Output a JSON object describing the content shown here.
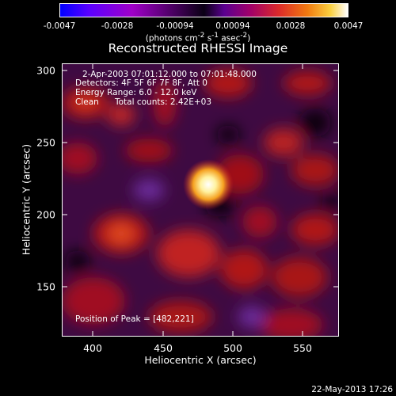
{
  "colorbar": {
    "ticks": [
      "-0.0047",
      "-0.0028",
      "-0.00094",
      "0.00094",
      "0.0028",
      "0.0047"
    ],
    "units_prefix": "(photons cm",
    "units_sup1": "-2",
    "units_mid": " s",
    "units_sup2": "-1",
    "units_mid2": " asec",
    "units_sup3": "-2",
    "units_suffix": ")"
  },
  "title": "Reconstructed RHESSI Image",
  "info": {
    "time": "2-Apr-2003 07:01:12.000 to 07:01:48.000",
    "detectors": "Detectors: 4F 5F 6F 7F 8F, Att 0",
    "energy": "Energy Range: 6.0 - 12.0 keV",
    "clean": "Clean",
    "counts": "Total counts: 2.42E+03",
    "peak": "Position of Peak = [482,221]"
  },
  "axes": {
    "xlabel": "Heliocentric X (arcsec)",
    "ylabel": "Heliocentric Y (arcsec)",
    "xticks": [
      "400",
      "450",
      "500",
      "550"
    ],
    "yticks": [
      "300",
      "250",
      "200",
      "150"
    ]
  },
  "timestamp": "22-May-2013 17:26"
}
